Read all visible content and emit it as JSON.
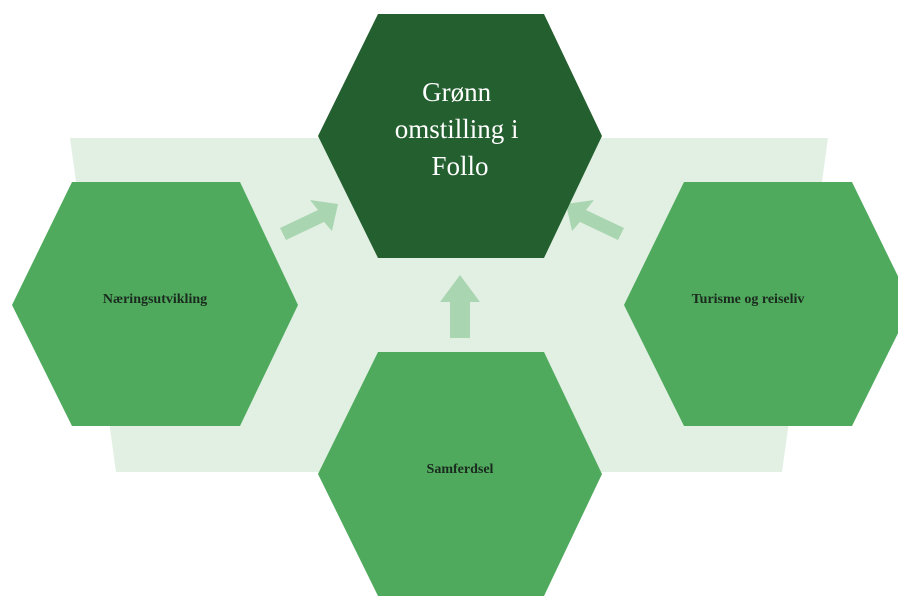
{
  "diagram": {
    "center": {
      "lines": [
        "Grønn",
        "omstilling i",
        "Follo"
      ]
    },
    "left": {
      "label": "Næringsutvikling"
    },
    "right": {
      "label": "Turisme og reiseliv"
    },
    "bottom": {
      "label": "Samferdsel"
    },
    "colors": {
      "center_fill": "#245f2f",
      "side_fill": "#4faa5d",
      "arrow_fill": "#a9d6b1",
      "background_band": "#e2f0e4"
    }
  }
}
